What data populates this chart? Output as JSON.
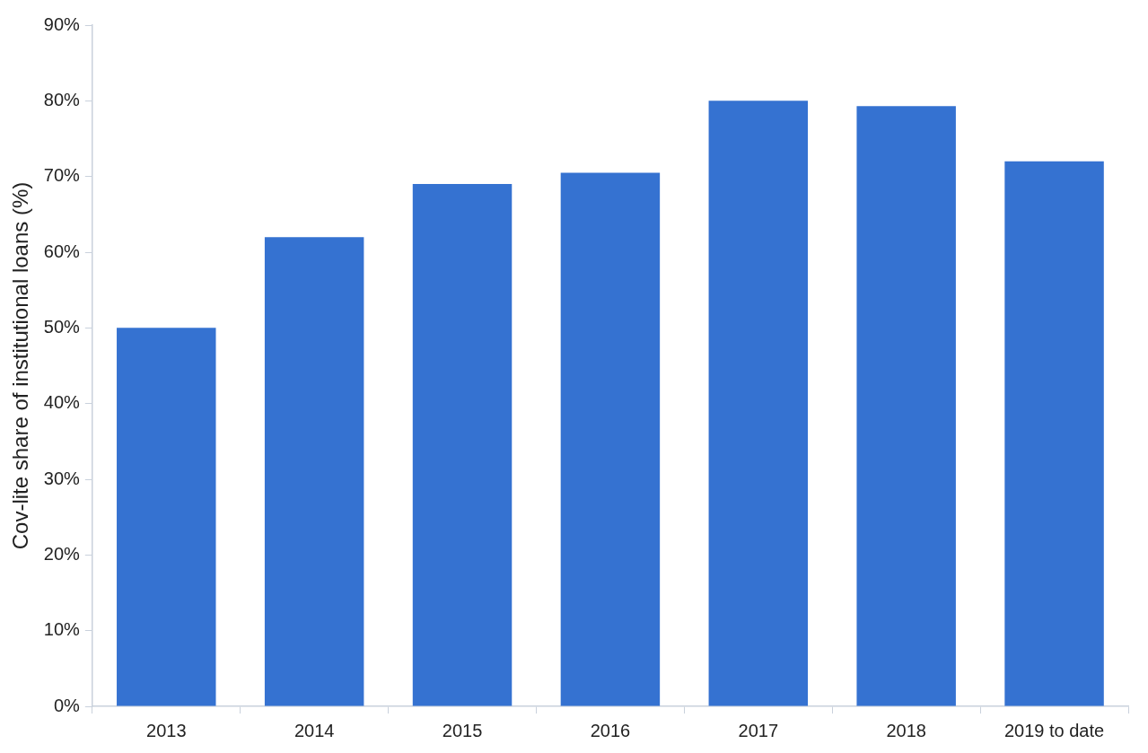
{
  "chart_data": {
    "type": "bar",
    "ylabel": "Cov-lite share of institutional loans (%)",
    "categories": [
      "2013",
      "2014",
      "2015",
      "2016",
      "2017",
      "2018",
      "2019 to date"
    ],
    "values": [
      50,
      62,
      69,
      70.5,
      80,
      79.3,
      72
    ],
    "color": "#3572d1",
    "ylim": [
      0,
      90
    ],
    "yticks": [
      {
        "value": 0,
        "label": "0%"
      },
      {
        "value": 10,
        "label": "10%"
      },
      {
        "value": 20,
        "label": "20%"
      },
      {
        "value": 30,
        "label": "30%"
      },
      {
        "value": 40,
        "label": "40%"
      },
      {
        "value": 50,
        "label": "50%"
      },
      {
        "value": 60,
        "label": "60%"
      },
      {
        "value": 70,
        "label": "70%"
      },
      {
        "value": 80,
        "label": "80%"
      },
      {
        "value": 90,
        "label": "90%"
      }
    ],
    "grid": false,
    "legend": false
  }
}
